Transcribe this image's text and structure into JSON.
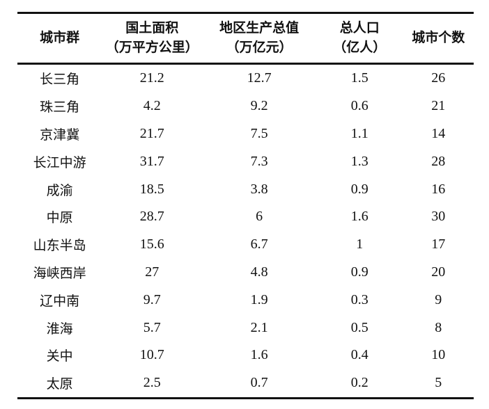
{
  "colors": {
    "background": "#ffffff",
    "text": "#111111",
    "rule": "#111111"
  },
  "table": {
    "columns": [
      {
        "label": "城市群",
        "unit": ""
      },
      {
        "label": "国土面积",
        "unit": "（万平方公里）"
      },
      {
        "label": "地区生产总值",
        "unit": "（万亿元）"
      },
      {
        "label": "总人口",
        "unit": "（亿人）"
      },
      {
        "label": "城市个数",
        "unit": ""
      }
    ],
    "rows": [
      [
        "长三角",
        "21.2",
        "12.7",
        "1.5",
        "26"
      ],
      [
        "珠三角",
        "4.2",
        "9.2",
        "0.6",
        "21"
      ],
      [
        "京津冀",
        "21.7",
        "7.5",
        "1.1",
        "14"
      ],
      [
        "长江中游",
        "31.7",
        "7.3",
        "1.3",
        "28"
      ],
      [
        "成渝",
        "18.5",
        "3.8",
        "0.9",
        "16"
      ],
      [
        "中原",
        "28.7",
        "6",
        "1.6",
        "30"
      ],
      [
        "山东半岛",
        "15.6",
        "6.7",
        "1",
        "17"
      ],
      [
        "海峡西岸",
        "27",
        "4.8",
        "0.9",
        "20"
      ],
      [
        "辽中南",
        "9.7",
        "1.9",
        "0.3",
        "9"
      ],
      [
        "淮海",
        "5.7",
        "2.1",
        "0.5",
        "8"
      ],
      [
        "关中",
        "10.7",
        "1.6",
        "0.4",
        "10"
      ],
      [
        "太原",
        "2.5",
        "0.7",
        "0.2",
        "5"
      ]
    ]
  }
}
